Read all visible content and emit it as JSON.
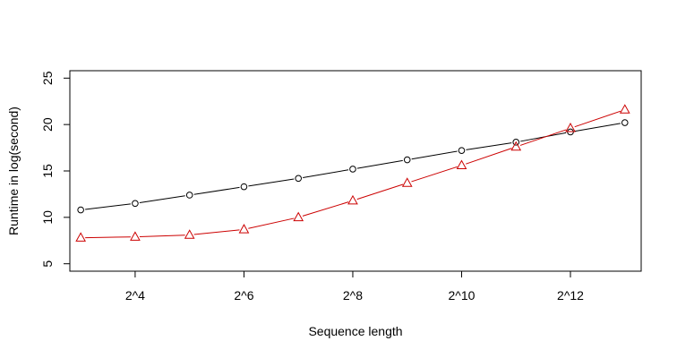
{
  "chart_data": {
    "type": "line",
    "title": "",
    "xlabel": "Sequence length",
    "ylabel": "Runtime in log(second)",
    "x": [
      3,
      4,
      5,
      6,
      7,
      8,
      9,
      10,
      11,
      12,
      13
    ],
    "x_tick_values": [
      4,
      6,
      8,
      10,
      12
    ],
    "x_tick_labels": [
      "2^4",
      "2^6",
      "2^8",
      "2^10",
      "2^12"
    ],
    "y_ticks": [
      5,
      10,
      15,
      20,
      25
    ],
    "y_tick_labels": [
      "5",
      "10",
      "15",
      "20",
      "25"
    ],
    "xlim": [
      2.8,
      13.3
    ],
    "ylim": [
      4.2,
      25.8
    ],
    "grid": false,
    "legend": false,
    "series": [
      {
        "color": "#000000",
        "marker": "circle",
        "values": [
          10.8,
          11.5,
          12.4,
          13.3,
          14.2,
          15.2,
          16.2,
          17.2,
          18.1,
          19.2,
          20.2
        ]
      },
      {
        "color": "#cc0000",
        "marker": "triangle",
        "values": [
          7.8,
          7.9,
          8.1,
          8.7,
          10.0,
          11.8,
          13.7,
          15.6,
          17.6,
          19.6,
          21.6
        ]
      }
    ]
  }
}
